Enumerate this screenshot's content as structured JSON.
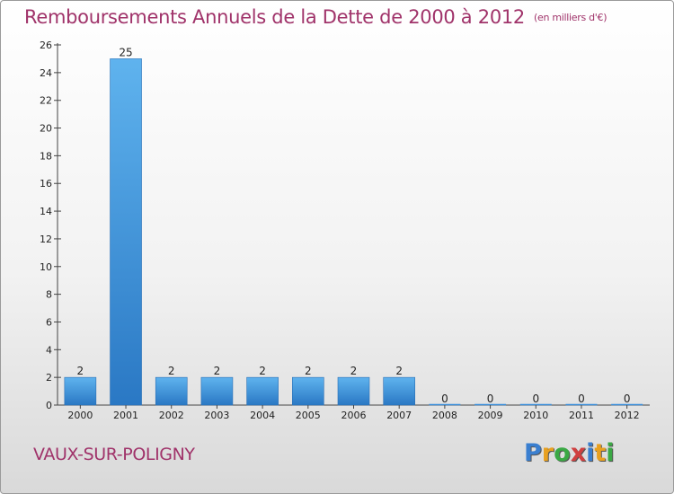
{
  "chart_data": {
    "type": "bar",
    "title": "Remboursements Annuels de la Dette de 2000 à 2012",
    "subtitle": "(en milliers d'€)",
    "categories": [
      "2000",
      "2001",
      "2002",
      "2003",
      "2004",
      "2005",
      "2006",
      "2007",
      "2008",
      "2009",
      "2010",
      "2011",
      "2012"
    ],
    "values": [
      2,
      25,
      2,
      2,
      2,
      2,
      2,
      2,
      0,
      0,
      0,
      0,
      0
    ],
    "value_labels": [
      "2",
      "25",
      "2",
      "2",
      "2",
      "2",
      "2",
      "2",
      "0",
      "0",
      "0",
      "0",
      "0"
    ],
    "ylim": [
      0,
      26
    ],
    "yticks": [
      0,
      2,
      4,
      6,
      8,
      10,
      12,
      14,
      16,
      18,
      20,
      22,
      24,
      26
    ],
    "ytick_labels": [
      "0",
      "2",
      "4",
      "6",
      "8",
      "10",
      "12",
      "14",
      "16",
      "18",
      "20",
      "22",
      "24",
      "26"
    ],
    "grid": false,
    "bar_color": "#3a8fdb"
  },
  "commune": "VAUX-SUR-POLIGNY",
  "logo": {
    "letters": [
      "P",
      "r",
      "o",
      "x",
      "i",
      "t",
      "i"
    ],
    "colors": [
      "#3a7fd0",
      "#e8a020",
      "#3aa844",
      "#d04040",
      "#3a7fd0",
      "#e8a020",
      "#3aa844"
    ]
  },
  "colors": {
    "title": "#a0336a",
    "axis": "#444444"
  }
}
